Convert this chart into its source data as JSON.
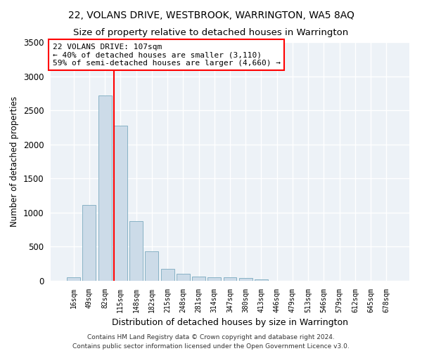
{
  "title": "22, VOLANS DRIVE, WESTBROOK, WARRINGTON, WA5 8AQ",
  "subtitle": "Size of property relative to detached houses in Warrington",
  "xlabel": "Distribution of detached houses by size in Warrington",
  "ylabel": "Number of detached properties",
  "bar_color": "#ccdbe8",
  "bar_edgecolor": "#7aaabf",
  "background_color": "#edf2f7",
  "categories": [
    "16sqm",
    "49sqm",
    "82sqm",
    "115sqm",
    "148sqm",
    "182sqm",
    "215sqm",
    "248sqm",
    "281sqm",
    "314sqm",
    "347sqm",
    "380sqm",
    "413sqm",
    "446sqm",
    "479sqm",
    "513sqm",
    "546sqm",
    "579sqm",
    "612sqm",
    "645sqm",
    "678sqm"
  ],
  "values": [
    50,
    1110,
    2720,
    2280,
    870,
    430,
    175,
    100,
    65,
    55,
    50,
    40,
    25,
    0,
    0,
    0,
    0,
    0,
    0,
    0,
    0
  ],
  "ylim": [
    0,
    3500
  ],
  "yticks": [
    0,
    500,
    1000,
    1500,
    2000,
    2500,
    3000,
    3500
  ],
  "property_label": "22 VOLANS DRIVE: 107sqm",
  "annotation_line1": "← 40% of detached houses are smaller (3,110)",
  "annotation_line2": "59% of semi-detached houses are larger (4,660) →",
  "vline_x_index": 3,
  "footer_line1": "Contains HM Land Registry data © Crown copyright and database right 2024.",
  "footer_line2": "Contains public sector information licensed under the Open Government Licence v3.0.",
  "title_fontsize": 10,
  "subtitle_fontsize": 9.5,
  "xlabel_fontsize": 9,
  "ylabel_fontsize": 8.5
}
